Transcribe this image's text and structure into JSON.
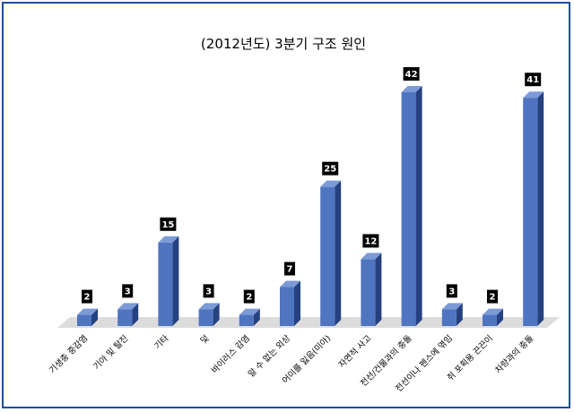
{
  "chart_data": {
    "type": "bar",
    "title": "(2012년도) 3분기 구조 원인",
    "xlabel": "",
    "ylabel": "",
    "categories": [
      "기생충 중감염",
      "기아 및 탈진",
      "기타",
      "덫",
      "바이러스 감염",
      "알 수 없는 외상",
      "어미를 잃음(미아)",
      "자연적 사고",
      "전선/건물과의 충돌",
      "전선이나 펜스에 엮임",
      "쥐 포획용 끈끈이",
      "차량과의 충돌"
    ],
    "values": [
      2,
      3,
      15,
      3,
      2,
      7,
      25,
      12,
      42,
      3,
      2,
      41
    ],
    "ylim": [
      0,
      42
    ],
    "grid": false,
    "legend": "none",
    "bar_style": "3d",
    "colors": {
      "bar_front": "#4f74c0",
      "bar_side": "#25417f",
      "bar_top": "#7c9ad6",
      "floor": "#dcdcdc",
      "label_bg": "#000000",
      "label_text": "#ffffff",
      "frame": "#1f4e9a"
    }
  }
}
